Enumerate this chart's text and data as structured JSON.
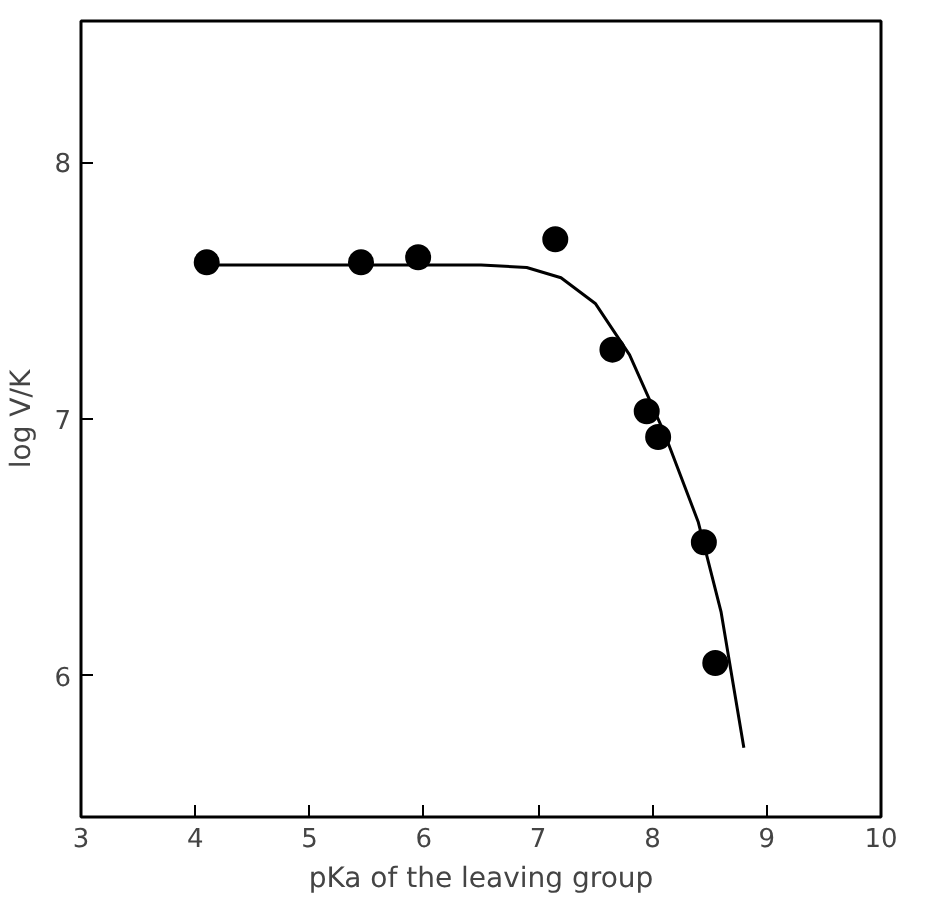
{
  "chart_data": {
    "type": "scatter",
    "xlabel": "pKa of the leaving group",
    "ylabel": "log V/K",
    "xlim": [
      3,
      10
    ],
    "ylim": [
      5.45,
      8.55
    ],
    "xticks": [
      3,
      4,
      5,
      6,
      7,
      8,
      9,
      10
    ],
    "yticks": [
      6,
      7,
      8
    ],
    "grid": false,
    "series": [
      {
        "color": "#000000",
        "marker": "circle",
        "x": [
          4.1,
          5.45,
          5.95,
          7.15,
          7.65,
          7.95,
          8.05,
          8.45,
          8.55
        ],
        "values": [
          7.61,
          7.61,
          7.63,
          7.7,
          7.27,
          7.03,
          6.93,
          6.52,
          6.05
        ]
      },
      {
        "type": "line",
        "color": "#000000",
        "x": [
          4.1,
          6.5,
          6.9,
          7.2,
          7.5,
          7.8,
          8.1,
          8.4,
          8.6,
          8.8
        ],
        "values": [
          7.6,
          7.6,
          7.59,
          7.55,
          7.45,
          7.25,
          6.95,
          6.6,
          6.25,
          5.72
        ]
      }
    ]
  }
}
